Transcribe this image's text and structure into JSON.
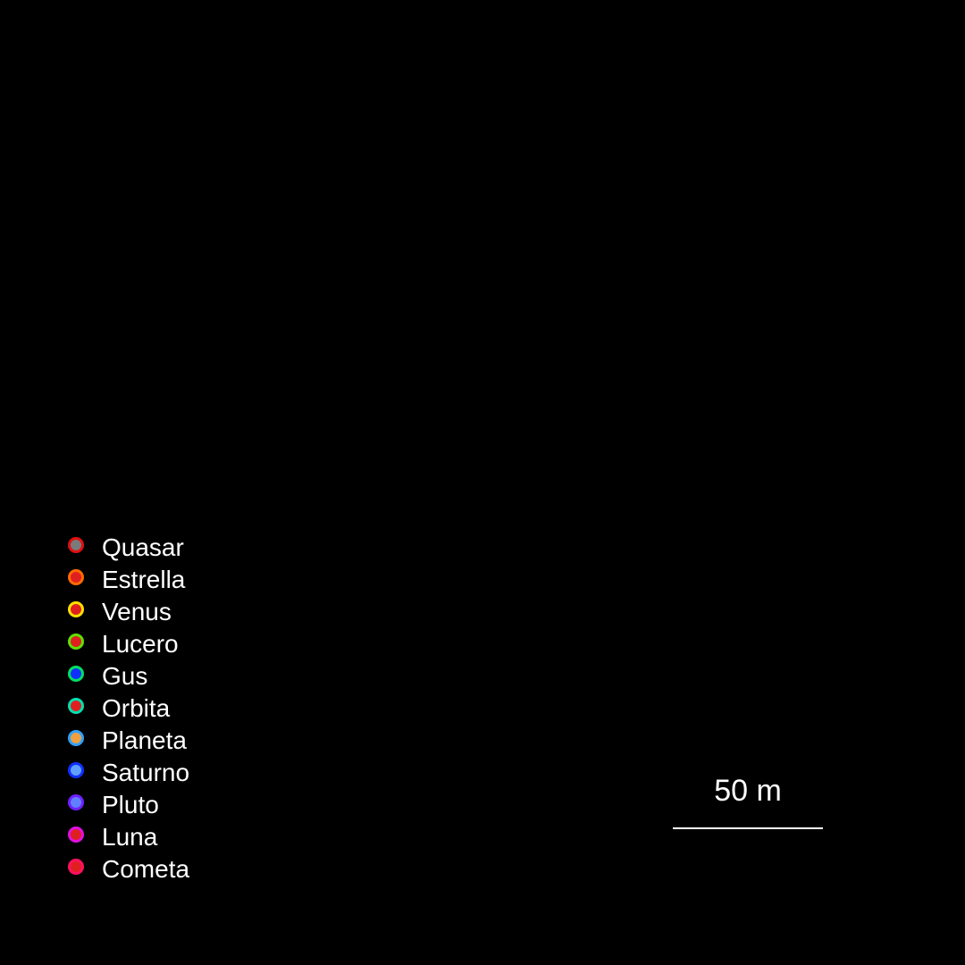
{
  "legend": {
    "items": [
      {
        "label": "Quasar",
        "fill": "#7a7a7a",
        "ring": "#e01010"
      },
      {
        "label": "Estrella",
        "fill": "#e02020",
        "ring": "#ff6a00"
      },
      {
        "label": "Venus",
        "fill": "#e02020",
        "ring": "#ffe000"
      },
      {
        "label": "Lucero",
        "fill": "#e02020",
        "ring": "#60e000"
      },
      {
        "label": "Gus",
        "fill": "#1030ff",
        "ring": "#00e060"
      },
      {
        "label": "Orbita",
        "fill": "#e02020",
        "ring": "#00e0b0"
      },
      {
        "label": "Planeta",
        "fill": "#f0a040",
        "ring": "#30a0ff"
      },
      {
        "label": "Saturno",
        "fill": "#60a0ff",
        "ring": "#1030ff"
      },
      {
        "label": "Pluto",
        "fill": "#6080ff",
        "ring": "#7020ff"
      },
      {
        "label": "Luna",
        "fill": "#e02020",
        "ring": "#e010e0"
      },
      {
        "label": "Cometa",
        "fill": "#e02020",
        "ring": "#ff1060"
      }
    ]
  },
  "scale": {
    "label": "50 m"
  }
}
